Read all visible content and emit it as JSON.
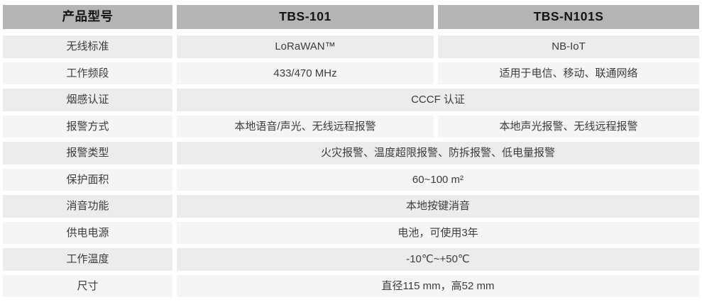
{
  "colors": {
    "page-bg": "#ffffff",
    "header-bg": "#b4b4b4",
    "header-text": "#141414",
    "row-dark-bg": "#ececec",
    "row-light-bg": "#f5f5f5",
    "body-text": "#3c3c3c"
  },
  "table": {
    "header": {
      "product_model": "产品型号",
      "tbs101": "TBS-101",
      "tbsn101s": "TBS-N101S"
    },
    "rows": [
      {
        "label": "无线标准",
        "tbs101": "LoRaWAN™",
        "tbsn101s": "NB-IoT"
      },
      {
        "label": "工作频段",
        "tbs101": "433/470 MHz",
        "tbsn101s": "适用于电信、移动、联通网络"
      },
      {
        "label": "烟感认证",
        "value": "CCCF 认证"
      },
      {
        "label": "报警方式",
        "tbs101": "本地语音/声光、无线远程报警",
        "tbsn101s": "本地声光报警、无线远程报警"
      },
      {
        "label": "报警类型",
        "value": "火灾报警、温度超限报警、防拆报警、低电量报警"
      },
      {
        "label": "保护面积",
        "value": "60~100 m²"
      },
      {
        "label": "消音功能",
        "value": "本地按键消音"
      },
      {
        "label": "供电电源",
        "value": "电池，可使用3年"
      },
      {
        "label": "工作温度",
        "value": "-10℃~+50℃"
      },
      {
        "label": "尺寸",
        "value": "直径115 mm，高52 mm"
      }
    ]
  }
}
